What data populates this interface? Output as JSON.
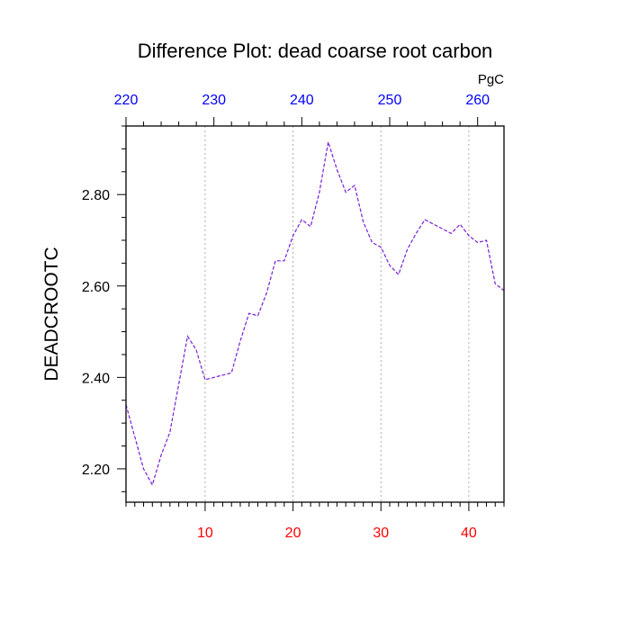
{
  "chart_data": {
    "type": "line",
    "title": "Difference Plot: dead coarse root carbon",
    "ylabel": "DEADCROOTC",
    "units": "PgC",
    "xlim": [
      1,
      44
    ],
    "ylim": [
      2.127,
      2.95
    ],
    "x_ticks": [
      10,
      20,
      30,
      40
    ],
    "x_tick_color": "#ff0000",
    "top_axis": {
      "ticks": [
        220,
        230,
        240,
        250,
        260
      ],
      "tick_color": "#0000ff"
    },
    "y_ticks": [
      2.2,
      2.4,
      2.6,
      2.8
    ],
    "y_tick_labels": [
      "2.20",
      "2.40",
      "2.60",
      "2.80"
    ],
    "grid": "vertical-dotted",
    "series": [
      {
        "color": "#7a1fd6",
        "line_style": "dashed",
        "x": [
          1,
          2,
          3,
          4,
          5,
          6,
          7,
          8,
          9,
          10,
          11,
          12,
          13,
          14,
          15,
          16,
          17,
          18,
          19,
          20,
          21,
          22,
          23,
          24,
          25,
          26,
          27,
          28,
          29,
          30,
          31,
          32,
          33,
          34,
          35,
          36,
          37,
          38,
          39,
          40,
          41,
          42,
          43,
          44
        ],
        "values": [
          2.34,
          2.27,
          2.2,
          2.165,
          2.23,
          2.28,
          2.385,
          2.49,
          2.46,
          2.395,
          2.4,
          2.405,
          2.41,
          2.48,
          2.54,
          2.535,
          2.585,
          2.655,
          2.655,
          2.71,
          2.745,
          2.73,
          2.805,
          2.915,
          2.855,
          2.805,
          2.82,
          2.74,
          2.695,
          2.685,
          2.645,
          2.625,
          2.68,
          2.715,
          2.745,
          2.735,
          2.725,
          2.715,
          2.735,
          2.71,
          2.695,
          2.7,
          2.605,
          2.59
        ]
      }
    ]
  }
}
